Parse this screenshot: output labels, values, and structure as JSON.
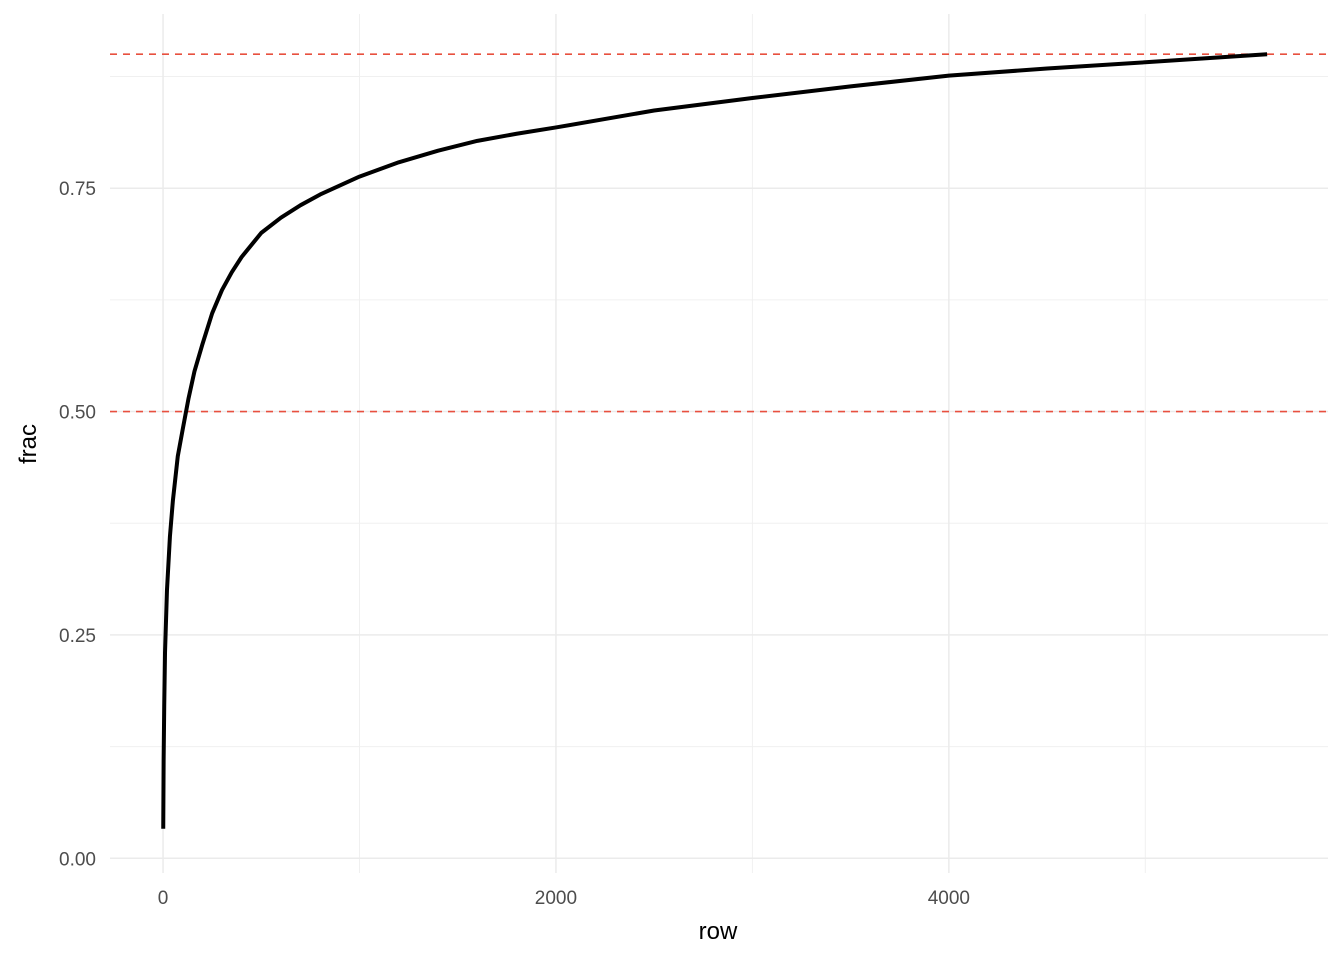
{
  "chart_data": {
    "type": "line",
    "title": "",
    "xlabel": "row",
    "ylabel": "frac",
    "xlim": [
      -270,
      5930
    ],
    "ylim": [
      -0.0165,
      0.945
    ],
    "x_ticks": [
      0,
      2000,
      4000
    ],
    "x_tick_labels": [
      "0",
      "2000",
      "4000"
    ],
    "x_minor_ticks": [
      1000,
      3000,
      5000
    ],
    "y_ticks": [
      0.0,
      0.25,
      0.5,
      0.75
    ],
    "y_tick_labels": [
      "0.00",
      "0.25",
      "0.50",
      "0.75"
    ],
    "y_minor_ticks": [
      0.125,
      0.375,
      0.625,
      0.875
    ],
    "grid": true,
    "legend": "none",
    "series": [
      {
        "color": "#000000",
        "x": [
          1,
          3,
          6,
          10,
          20,
          35,
          50,
          75,
          100,
          130,
          160,
          200,
          250,
          300,
          350,
          400,
          500,
          600,
          700,
          800,
          1000,
          1200,
          1400,
          1600,
          1800,
          2000,
          2500,
          3000,
          3500,
          4000,
          4500,
          5000,
          5620
        ],
        "y": [
          0.033,
          0.11,
          0.17,
          0.23,
          0.3,
          0.36,
          0.4,
          0.45,
          0.48,
          0.515,
          0.545,
          0.575,
          0.61,
          0.636,
          0.656,
          0.673,
          0.7,
          0.717,
          0.731,
          0.743,
          0.763,
          0.779,
          0.792,
          0.803,
          0.811,
          0.818,
          0.837,
          0.851,
          0.864,
          0.876,
          0.884,
          0.891,
          0.9
        ]
      }
    ],
    "reference_lines": [
      {
        "axis": "y",
        "value": 0.9,
        "color": "#e8503f",
        "style": "dashed"
      },
      {
        "axis": "y",
        "value": 0.5,
        "color": "#e8503f",
        "style": "dashed"
      }
    ]
  }
}
